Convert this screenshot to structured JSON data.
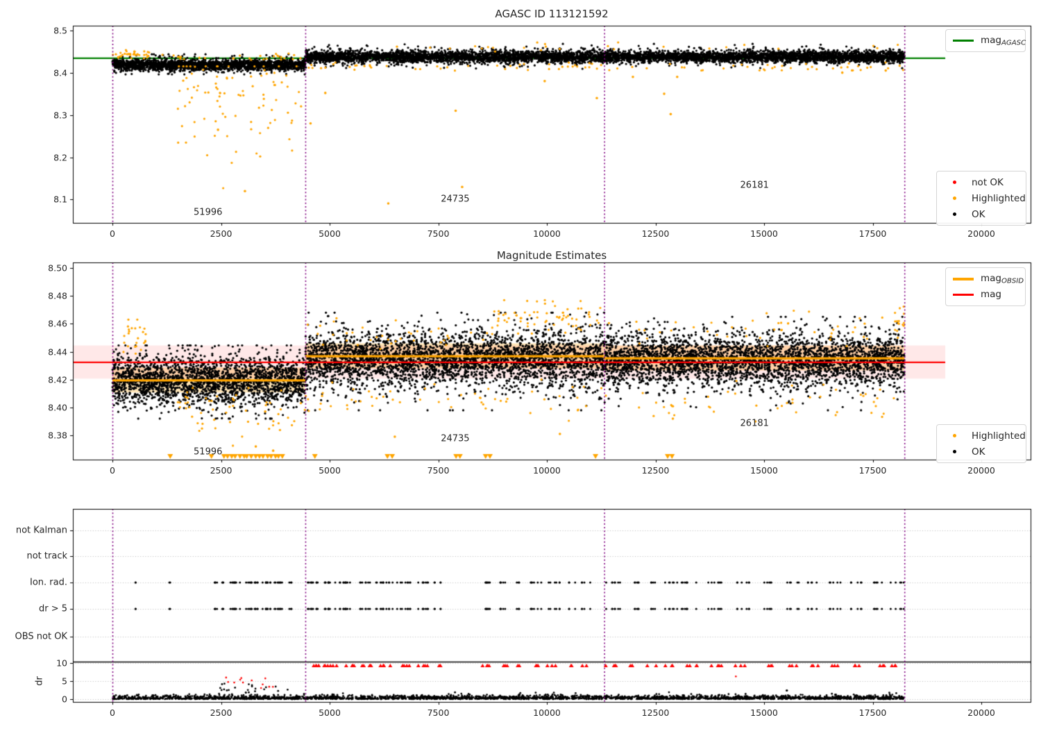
{
  "figure": {
    "bg": "#ffffff"
  },
  "colors": {
    "ok": "#000000",
    "highlighted": "#FFA500",
    "not_ok": "#FF0000",
    "agasc_line": "#008000",
    "mag_line": "#FF0000",
    "obsid_line": "#FFA500",
    "obsid_boundary": "#800080",
    "mag_err_band": "rgba(255,0,0,0.09)",
    "obsid_band": "rgba(255,165,0,0.28)",
    "grid": "#b8b8b8",
    "spine": "#000000"
  },
  "legend_agasc": {
    "main": "mag",
    "sub": "AGASC",
    "color": "#008000"
  },
  "legend_maglines": {
    "rows": [
      {
        "main": "mag",
        "sub": "OBSID",
        "color": "#FFA500"
      },
      {
        "main": "mag",
        "sub": "",
        "color": "#FF0000"
      }
    ]
  },
  "legend_flags_top": {
    "rows": [
      {
        "label": "not OK",
        "color": "#FF0000"
      },
      {
        "label": "Highlighted",
        "color": "#FFA500"
      },
      {
        "label": "OK",
        "color": "#000000"
      }
    ]
  },
  "legend_flags_mid": {
    "rows": [
      {
        "label": "Highlighted",
        "color": "#FFA500"
      },
      {
        "label": "OK",
        "color": "#000000"
      }
    ]
  },
  "chart_data": [
    {
      "type": "scatter",
      "title": "AGASC ID 113121592",
      "xlabel": "",
      "ylabel": "",
      "xlim": [
        -910,
        21130
      ],
      "ylim": [
        8.045,
        8.511
      ],
      "xticks": [
        0,
        2500,
        5000,
        7500,
        10000,
        12500,
        15000,
        17500,
        20000
      ],
      "yticks": [
        "8.1",
        "8.2",
        "8.3",
        "8.4",
        "8.5"
      ],
      "ytick_values": [
        8.1,
        8.2,
        8.3,
        8.4,
        8.5
      ],
      "grid": false,
      "agasc_mag": 8.435,
      "agasc_line_span": [
        -910,
        19170
      ],
      "obsid_boundaries": [
        0,
        4440,
        11320,
        18230
      ],
      "annotations": [
        {
          "text": "51996",
          "x": 2200,
          "y": 8.069
        },
        {
          "text": "24735",
          "x": 7890,
          "y": 8.1
        },
        {
          "text": "26181",
          "x": 14780,
          "y": 8.133
        }
      ],
      "ok_bands": [
        {
          "x": [
            0,
            4440
          ],
          "n": 2200,
          "mean": 8.4185,
          "sd": 0.0062,
          "sd2": 0.011,
          "frac2": 0.15,
          "clip": [
            8.396,
            8.4435
          ]
        },
        {
          "x": [
            4440,
            11320
          ],
          "n": 3000,
          "mean": 8.4375,
          "sd": 0.0068,
          "sd2": 0.012,
          "frac2": 0.15,
          "clip": [
            8.405,
            8.468
          ]
        },
        {
          "x": [
            11320,
            18230
          ],
          "n": 3000,
          "mean": 8.4375,
          "sd": 0.0064,
          "sd2": 0.011,
          "frac2": 0.15,
          "clip": [
            8.405,
            8.468
          ]
        }
      ],
      "highlighted_bands": [
        {
          "x": [
            0,
            900
          ],
          "n": 35,
          "mean": 8.443,
          "sd": 0.005,
          "clip": [
            8.432,
            8.465
          ]
        },
        {
          "x": [
            900,
            4440
          ],
          "n": 28,
          "mean": 8.437,
          "sd": 0.005,
          "clip": [
            8.425,
            8.452
          ]
        },
        {
          "x": [
            1500,
            4350
          ],
          "n": 95,
          "mean": 8.33,
          "sd": 0.075,
          "clip": [
            8.095,
            8.415
          ]
        },
        {
          "x": [
            4440,
            11320
          ],
          "n": 45,
          "mean": 8.413,
          "sd": 0.005,
          "clip": [
            8.392,
            8.424
          ]
        },
        {
          "x": [
            11320,
            18230
          ],
          "n": 40,
          "mean": 8.413,
          "sd": 0.005,
          "clip": [
            8.392,
            8.424
          ]
        },
        {
          "x": [
            4440,
            18230
          ],
          "n": 25,
          "mean": 8.461,
          "sd": 0.006,
          "clip": [
            8.45,
            8.476
          ]
        }
      ],
      "highlighted_points": [
        [
          4560,
          8.28
        ],
        [
          4900,
          8.352
        ],
        [
          6350,
          8.091
        ],
        [
          8050,
          8.13
        ],
        [
          7900,
          8.31
        ],
        [
          9950,
          8.38
        ],
        [
          11150,
          8.34
        ],
        [
          11980,
          8.39
        ],
        [
          12700,
          8.35
        ],
        [
          12850,
          8.302
        ],
        [
          13000,
          8.39
        ],
        [
          16800,
          8.4
        ],
        [
          17800,
          8.405
        ],
        [
          2430,
          8.265
        ],
        [
          3050,
          8.12
        ]
      ]
    },
    {
      "type": "scatter",
      "title": "Magnitude Estimates",
      "xlabel": "",
      "ylabel": "",
      "xlim": [
        -910,
        21130
      ],
      "ylim": [
        8.3626,
        8.504
      ],
      "xticks": [
        0,
        2500,
        5000,
        7500,
        10000,
        12500,
        15000,
        17500,
        20000
      ],
      "yticks": [
        "8.38",
        "8.40",
        "8.42",
        "8.44",
        "8.46",
        "8.48",
        "8.50"
      ],
      "ytick_values": [
        8.38,
        8.4,
        8.42,
        8.44,
        8.46,
        8.48,
        8.5
      ],
      "grid": false,
      "mag": 8.4326,
      "mag_err_band": [
        8.4207,
        8.4445
      ],
      "mag_line_span": [
        -910,
        19170
      ],
      "obsid_boundaries": [
        0,
        4440,
        11320,
        18230
      ],
      "obsid_segments": [
        {
          "obsid": "51996",
          "x": [
            0,
            4440
          ],
          "mag": 8.4197,
          "band_halfwidth": 0.009
        },
        {
          "obsid": "24735",
          "x": [
            4440,
            11320
          ],
          "mag": 8.437,
          "band_halfwidth": 0.009
        },
        {
          "obsid": "26181",
          "x": [
            11320,
            18230
          ],
          "mag": 8.4355,
          "band_halfwidth": 0.009
        }
      ],
      "annotations": [
        {
          "text": "51996",
          "x": 2200,
          "y": 8.368
        },
        {
          "text": "24735",
          "x": 7890,
          "y": 8.3775
        },
        {
          "text": "26181",
          "x": 14780,
          "y": 8.3885
        }
      ],
      "ok_bands": [
        {
          "x": [
            0,
            4440
          ],
          "n": 2300,
          "mean": 8.419,
          "sd": 0.0082,
          "sd2": 0.014,
          "frac2": 0.18,
          "clip": [
            8.392,
            8.4445
          ]
        },
        {
          "x": [
            4440,
            11320
          ],
          "n": 3300,
          "mean": 8.4345,
          "sd": 0.009,
          "sd2": 0.016,
          "frac2": 0.2,
          "clip": [
            8.398,
            8.468
          ]
        },
        {
          "x": [
            11320,
            18230
          ],
          "n": 3300,
          "mean": 8.434,
          "sd": 0.0085,
          "sd2": 0.015,
          "frac2": 0.2,
          "clip": [
            8.398,
            8.465
          ]
        }
      ],
      "highlighted_bands": [
        {
          "x": [
            250,
            800
          ],
          "n": 25,
          "mean": 8.449,
          "sd": 0.006,
          "clip": [
            8.433,
            8.463
          ]
        },
        {
          "x": [
            1500,
            4440
          ],
          "n": 55,
          "mean": 8.397,
          "sd": 0.01,
          "clip": [
            8.366,
            8.414
          ]
        },
        {
          "x": [
            4440,
            11320
          ],
          "n": 55,
          "mean": 8.406,
          "sd": 0.007,
          "clip": [
            8.385,
            8.42
          ]
        },
        {
          "x": [
            8700,
            11310
          ],
          "n": 70,
          "mean": 8.464,
          "sd": 0.006,
          "clip": [
            8.449,
            8.477
          ]
        },
        {
          "x": [
            4440,
            8700
          ],
          "n": 35,
          "mean": 8.452,
          "sd": 0.005,
          "clip": [
            8.442,
            8.466
          ]
        },
        {
          "x": [
            11320,
            18230
          ],
          "n": 45,
          "mean": 8.455,
          "sd": 0.006,
          "clip": [
            8.444,
            8.472
          ]
        },
        {
          "x": [
            11320,
            18230
          ],
          "n": 45,
          "mean": 8.406,
          "sd": 0.007,
          "clip": [
            8.386,
            8.419
          ]
        },
        {
          "x": [
            17990,
            18230
          ],
          "n": 14,
          "mean": 8.462,
          "sd": 0.007,
          "clip": [
            8.45,
            8.475
          ]
        }
      ],
      "highlighted_points": [
        [
          10300,
          8.381
        ],
        [
          6500,
          8.379
        ],
        [
          12900,
          8.392
        ],
        [
          14800,
          8.39
        ],
        [
          3300,
          8.372
        ],
        [
          3700,
          8.369
        ]
      ],
      "clipped_low_run": {
        "x": [
          2560,
          3960
        ],
        "step": 90
      },
      "clipped_low_singles": [
        1330,
        2280,
        4660,
        6330,
        6440,
        7910,
        8000,
        8590,
        8690,
        11120,
        12780,
        12880
      ]
    },
    {
      "type": "scatter",
      "title": "",
      "xlabel": "",
      "ylabel": "dr",
      "xlim": [
        -910,
        21130
      ],
      "xticks": [
        0,
        2500,
        5000,
        7500,
        10000,
        12500,
        15000,
        17500,
        20000
      ],
      "ytick_labels": [
        "not Kalman",
        "not track",
        "Ion. rad.",
        "dr > 5",
        "OBS not OK",
        "10",
        "5",
        "0"
      ],
      "grid": true,
      "dr_limit": 10,
      "obsid_boundaries": [
        0,
        4440,
        11320,
        18230
      ],
      "flag_rows_with_data": [
        "Ion. rad.",
        "dr > 5"
      ],
      "flag_clusters": [
        [
          500,
          545,
          2
        ],
        [
          1290,
          1335,
          2
        ],
        [
          2300,
          2430,
          4
        ],
        [
          2520,
          2610,
          3
        ],
        [
          2700,
          3000,
          9
        ],
        [
          3050,
          3350,
          11
        ],
        [
          3400,
          3650,
          9
        ],
        [
          3700,
          3950,
          8
        ],
        [
          4050,
          4160,
          3
        ],
        [
          4480,
          4800,
          9
        ],
        [
          4850,
          5250,
          11
        ],
        [
          5300,
          5600,
          8
        ],
        [
          5700,
          6100,
          9
        ],
        [
          6150,
          6500,
          9
        ],
        [
          6550,
          6900,
          8
        ],
        [
          7000,
          7300,
          7
        ],
        [
          7400,
          7560,
          4
        ],
        [
          8500,
          8800,
          7
        ],
        [
          8900,
          9100,
          5
        ],
        [
          9300,
          9420,
          3
        ],
        [
          9600,
          9900,
          6
        ],
        [
          10000,
          10300,
          6
        ],
        [
          10500,
          10660,
          3
        ],
        [
          10800,
          11000,
          4
        ],
        [
          11350,
          11700,
          7
        ],
        [
          11900,
          12150,
          5
        ],
        [
          12300,
          12520,
          4
        ],
        [
          12700,
          13000,
          6
        ],
        [
          13100,
          13500,
          7
        ],
        [
          13700,
          14100,
          7
        ],
        [
          14300,
          14700,
          6
        ],
        [
          14900,
          15200,
          5
        ],
        [
          15500,
          15800,
          5
        ],
        [
          16000,
          16300,
          5
        ],
        [
          16500,
          16800,
          5
        ],
        [
          17000,
          17300,
          5
        ],
        [
          17500,
          17800,
          5
        ],
        [
          17900,
          18230,
          5
        ]
      ],
      "red_clipped_min_x": 4440,
      "red_low_cluster": {
        "x": [
          2520,
          3800
        ],
        "n": 12,
        "range": [
          3,
          6
        ]
      },
      "red_low_points": [
        [
          14350,
          6.3
        ]
      ],
      "dr_band": {
        "x": [
          0,
          18230
        ],
        "n": 2600,
        "sigma": 0.5,
        "clip": 1.8
      },
      "dr_bump": {
        "x": [
          2450,
          4050
        ],
        "n": 26,
        "range": [
          1,
          4.6
        ]
      },
      "dr_mid_points": {
        "x": [
          4440,
          18230
        ],
        "n": 10,
        "range": [
          1.5,
          2.4
        ]
      }
    }
  ]
}
